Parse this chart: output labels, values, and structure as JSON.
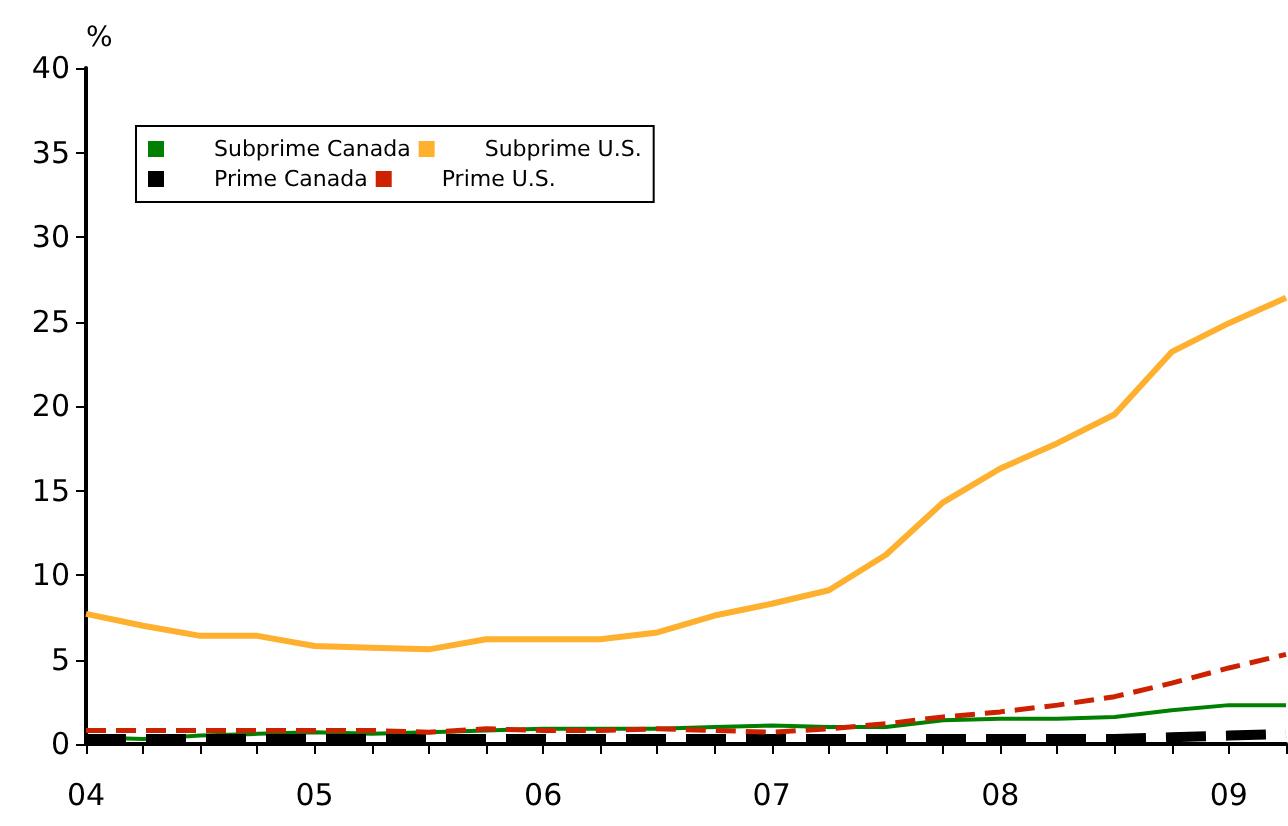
{
  "chart_data": {
    "type": "line",
    "ylabel": "%",
    "x": [
      2004,
      2004.25,
      2004.5,
      2004.75,
      2005,
      2005.25,
      2005.5,
      2005.75,
      2006,
      2006.25,
      2006.5,
      2006.75,
      2007,
      2007.25,
      2007.5,
      2007.75,
      2008,
      2008.25,
      2008.5,
      2008.75,
      2009,
      2009.25
    ],
    "series": [
      {
        "name": "Subprime Canada",
        "color": "#008000",
        "line_style": "solid",
        "values": [
          0.4,
          0.3,
          0.5,
          0.6,
          0.7,
          0.6,
          0.7,
          0.8,
          0.9,
          0.9,
          0.9,
          1.0,
          1.1,
          1.0,
          1.0,
          1.4,
          1.5,
          1.5,
          1.6,
          2.0,
          2.3,
          2.3
        ]
      },
      {
        "name": "Subprime U.S.",
        "color": "#ffb02e",
        "line_style": "solid",
        "values": [
          7.7,
          7.0,
          6.4,
          6.4,
          5.8,
          5.7,
          5.6,
          6.2,
          6.2,
          6.2,
          6.6,
          7.6,
          8.3,
          9.1,
          11.2,
          14.3,
          16.3,
          17.8,
          19.5,
          23.2,
          24.9,
          26.4
        ]
      },
      {
        "name": "Prime Canada",
        "color": "#000000",
        "line_style": "dashed",
        "values": [
          0.3,
          0.3,
          0.3,
          0.3,
          0.3,
          0.3,
          0.3,
          0.3,
          0.3,
          0.3,
          0.3,
          0.3,
          0.3,
          0.3,
          0.3,
          0.3,
          0.3,
          0.3,
          0.3,
          0.4,
          0.5,
          0.6
        ]
      },
      {
        "name": "Prime U.S.",
        "color": "#cc2200",
        "line_style": "dashed",
        "values": [
          0.8,
          0.8,
          0.8,
          0.8,
          0.8,
          0.8,
          0.7,
          0.9,
          0.8,
          0.8,
          0.9,
          0.8,
          0.7,
          0.9,
          1.2,
          1.6,
          1.9,
          2.3,
          2.8,
          3.6,
          4.5,
          5.3
        ]
      }
    ],
    "xlim": [
      2004,
      2009.25
    ],
    "xticks": [
      {
        "value": 2004,
        "label": "04"
      },
      {
        "value": 2004.25,
        "label": null
      },
      {
        "value": 2004.5,
        "label": null
      },
      {
        "value": 2004.75,
        "label": null
      },
      {
        "value": 2005,
        "label": "05"
      },
      {
        "value": 2005.25,
        "label": null
      },
      {
        "value": 2005.5,
        "label": null
      },
      {
        "value": 2005.75,
        "label": null
      },
      {
        "value": 2006,
        "label": "06"
      },
      {
        "value": 2006.25,
        "label": null
      },
      {
        "value": 2006.5,
        "label": null
      },
      {
        "value": 2006.75,
        "label": null
      },
      {
        "value": 2007,
        "label": "07"
      },
      {
        "value": 2007.25,
        "label": null
      },
      {
        "value": 2007.5,
        "label": null
      },
      {
        "value": 2007.75,
        "label": null
      },
      {
        "value": 2008,
        "label": "08"
      },
      {
        "value": 2008.25,
        "label": null
      },
      {
        "value": 2008.5,
        "label": null
      },
      {
        "value": 2008.75,
        "label": null
      },
      {
        "value": 2009,
        "label": "09"
      },
      {
        "value": 2009.25,
        "label": null
      }
    ],
    "ylim": [
      0,
      40
    ],
    "yticks": [
      0,
      5,
      10,
      15,
      20,
      25,
      30,
      35,
      40
    ],
    "grid": false,
    "legend": "top left",
    "marker": "none"
  }
}
